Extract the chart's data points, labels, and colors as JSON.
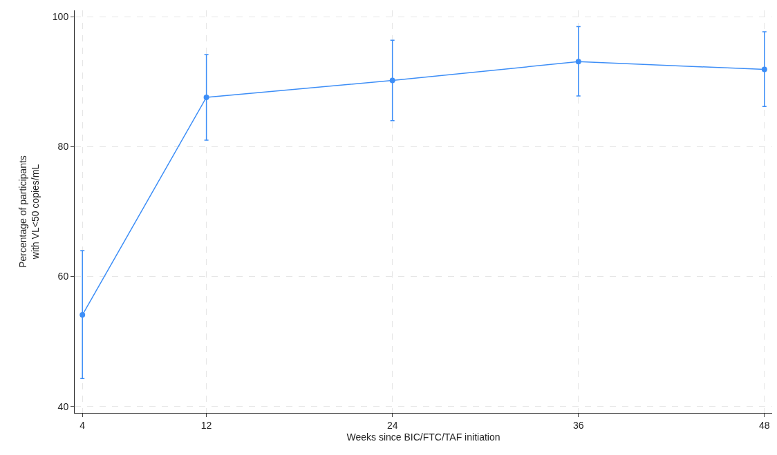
{
  "chart_data": {
    "type": "line",
    "xlabel": "Weeks since BIC/FTC/TAF initiation",
    "ylabel": "Percentage of participants\nwith VL<50 copies/mL",
    "x": [
      4,
      12,
      24,
      36,
      48
    ],
    "series": [
      {
        "color": "#3d8ef7",
        "values": [
          54.1,
          87.6,
          90.2,
          93.1,
          91.9
        ],
        "errors": [
          [
            44.3,
            64.0
          ],
          [
            81.0,
            94.2
          ],
          [
            84.0,
            96.4
          ],
          [
            87.8,
            98.5
          ],
          [
            86.2,
            97.7
          ]
        ]
      }
    ],
    "xlim": [
      3.5,
      48.5
    ],
    "xticks": [
      4,
      12,
      24,
      36,
      48
    ],
    "ylim": [
      39,
      101
    ],
    "yticks": [
      40,
      60,
      80,
      100
    ],
    "grid": true,
    "marker": "circle",
    "line_style": "solid"
  }
}
